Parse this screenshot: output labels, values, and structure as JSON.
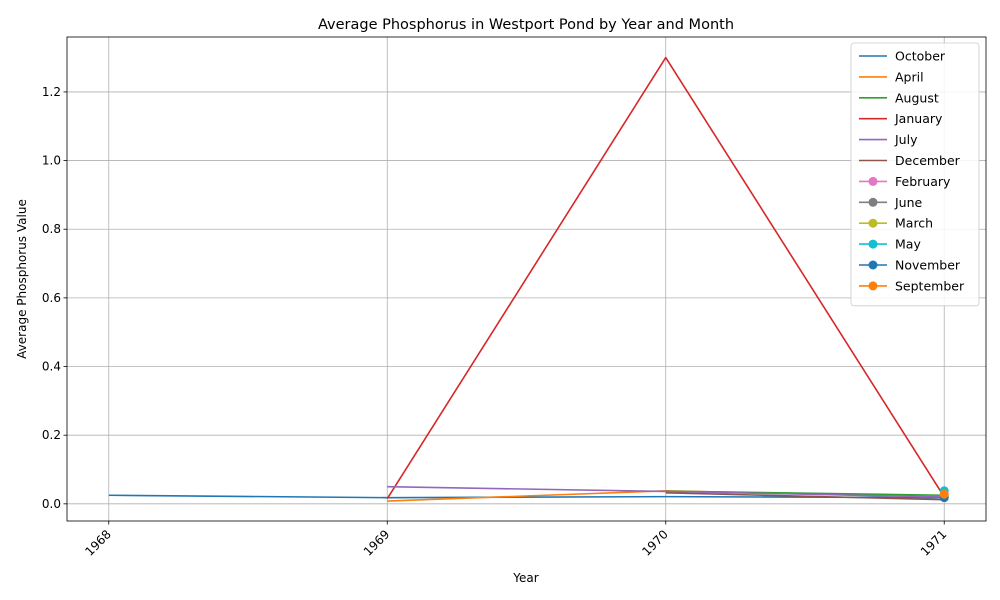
{
  "chart_data": {
    "type": "line",
    "title": "Average Phosphorus in Westport Pond by Year and Month",
    "xlabel": "Year",
    "ylabel": "Average Phosphorus Value",
    "xlim": [
      1967.85,
      1971.15
    ],
    "ylim": [
      -0.05,
      1.36
    ],
    "xticks": [
      1968,
      1969,
      1970,
      1971
    ],
    "yticks": [
      0.0,
      0.2,
      0.4,
      0.6,
      0.8,
      1.0,
      1.2
    ],
    "ytick_labels": [
      "0.0",
      "0.2",
      "0.4",
      "0.6",
      "0.8",
      "1.0",
      "1.2"
    ],
    "grid": true,
    "legend_position": "top-right",
    "series": [
      {
        "name": "October",
        "color": "#1f77b4",
        "markers": false,
        "x": [
          1968,
          1969,
          1970,
          1971
        ],
        "y": [
          0.025,
          0.018,
          0.021,
          0.018
        ]
      },
      {
        "name": "April",
        "color": "#ff7f0e",
        "markers": false,
        "x": [
          1969,
          1970,
          1971
        ],
        "y": [
          0.008,
          0.038,
          0.02
        ]
      },
      {
        "name": "August",
        "color": "#2ca02c",
        "markers": false,
        "x": [
          1970,
          1971
        ],
        "y": [
          0.037,
          0.025
        ]
      },
      {
        "name": "January",
        "color": "#d62728",
        "markers": false,
        "x": [
          1969,
          1970,
          1971
        ],
        "y": [
          0.015,
          1.3,
          0.02
        ]
      },
      {
        "name": "July",
        "color": "#9467bd",
        "markers": false,
        "x": [
          1969,
          1970,
          1971
        ],
        "y": [
          0.05,
          0.036,
          0.02
        ]
      },
      {
        "name": "December",
        "color": "#8c564b",
        "markers": false,
        "x": [
          1970,
          1971
        ],
        "y": [
          0.032,
          0.012
        ]
      },
      {
        "name": "February",
        "color": "#e377c2",
        "markers": true,
        "x": [
          1971
        ],
        "y": [
          0.025
        ]
      },
      {
        "name": "June",
        "color": "#7f7f7f",
        "markers": true,
        "x": [
          1971
        ],
        "y": [
          0.02
        ]
      },
      {
        "name": "March",
        "color": "#bcbd22",
        "markers": true,
        "x": [
          1971
        ],
        "y": [
          0.022
        ]
      },
      {
        "name": "May",
        "color": "#17becf",
        "markers": true,
        "x": [
          1971
        ],
        "y": [
          0.038
        ]
      },
      {
        "name": "November",
        "color": "#1f77b4",
        "markers": true,
        "x": [
          1971
        ],
        "y": [
          0.018
        ]
      },
      {
        "name": "September",
        "color": "#ff7f0e",
        "markers": true,
        "x": [
          1971
        ],
        "y": [
          0.028
        ]
      }
    ]
  }
}
